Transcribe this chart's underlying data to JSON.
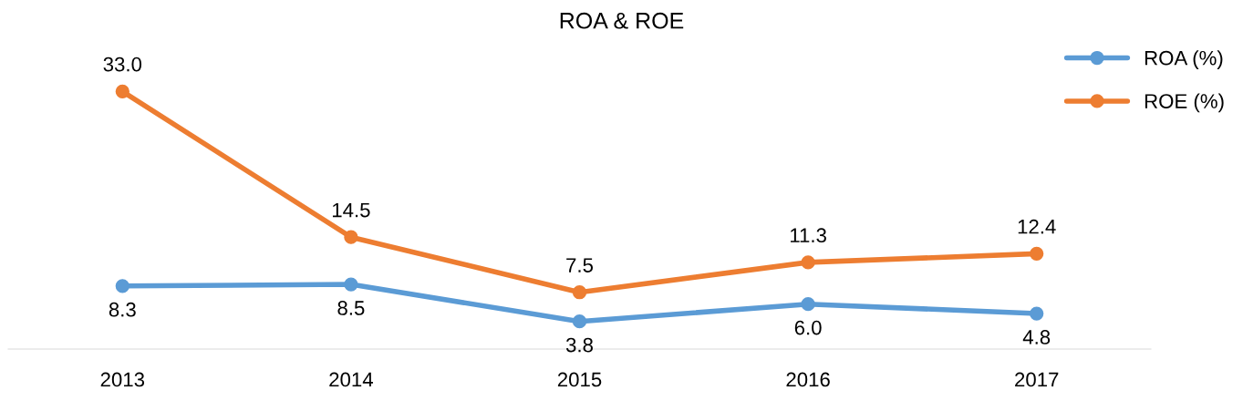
{
  "chart_data": {
    "type": "line",
    "title": "ROA & ROE",
    "categories": [
      "2013",
      "2014",
      "2015",
      "2016",
      "2017"
    ],
    "series": [
      {
        "name": "ROA (%)",
        "color": "#5b9bd5",
        "values": [
          8.3,
          8.5,
          3.8,
          6.0,
          4.8
        ],
        "value_labels": [
          "8.3",
          "8.5",
          "3.8",
          "6.0",
          "4.8"
        ]
      },
      {
        "name": "ROE (%)",
        "color": "#ed7d31",
        "values": [
          33.0,
          14.5,
          7.5,
          11.3,
          12.4
        ],
        "value_labels": [
          "33.0",
          "14.5",
          "7.5",
          "11.3",
          "12.4"
        ]
      }
    ],
    "tick_labels": "x",
    "grid": false,
    "legend": "top right",
    "marker": "circle",
    "line_style": "solid"
  }
}
